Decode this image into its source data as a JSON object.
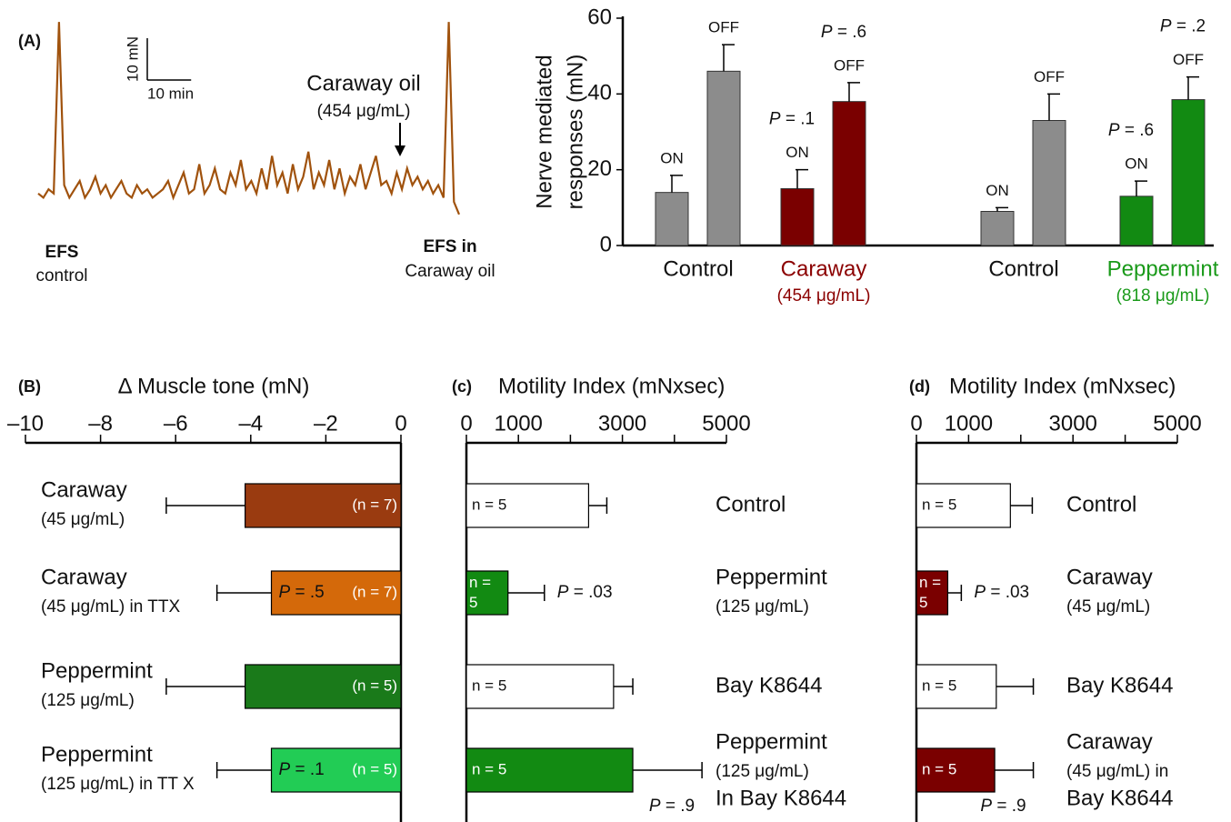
{
  "chart_data": [
    {
      "type": "trace",
      "panel": "(A)",
      "color": "#a0520d",
      "ylim": [
        0,
        50
      ],
      "xlim": [
        0,
        96
      ],
      "scalebar_y": 10,
      "scalebar_y_label": "10 mN",
      "scalebar_x": 10,
      "scalebar_x_label": "10 min",
      "annotations": [
        "Caraway oil",
        "(454 μg/mL)",
        "EFS",
        "control",
        "EFS in",
        "Caraway oil"
      ],
      "values": [
        7,
        6,
        8,
        7,
        48,
        9,
        6,
        8,
        10,
        6,
        8,
        11,
        7,
        9,
        6,
        8,
        10,
        7,
        6,
        9,
        7,
        8,
        6,
        7,
        8,
        10,
        6,
        9,
        12,
        7,
        8,
        14,
        7,
        9,
        13,
        8,
        7,
        12,
        9,
        15,
        8,
        10,
        7,
        13,
        8,
        16,
        9,
        12,
        7,
        14,
        8,
        11,
        17,
        8,
        12,
        9,
        15,
        8,
        13,
        7,
        11,
        9,
        14,
        8,
        12,
        16,
        9,
        10,
        7,
        12,
        8,
        13,
        9,
        11,
        8,
        10,
        7,
        9,
        6,
        48,
        5,
        2
      ]
    },
    {
      "type": "grouped-bar",
      "ylabel": [
        "Nerve mediated",
        "responses (mN)"
      ],
      "ylim": [
        0,
        60
      ],
      "yticks": [
        0,
        20,
        40,
        60
      ],
      "categories": [
        "Control",
        "Caraway",
        "Control",
        "Peppermint"
      ],
      "category_sublabels": [
        null,
        "(454 μg/mL)",
        null,
        "(818 μg/mL)"
      ],
      "colors": [
        "#8c8c8c",
        "#7a0000",
        "#8c8c8c",
        "#128a12"
      ],
      "label_colors": [
        "#111111",
        "#8b0000",
        "#111111",
        "#1a9a1a"
      ],
      "series": [
        {
          "name": "ON",
          "values": [
            14,
            15,
            9,
            13
          ],
          "errors": [
            4.5,
            5,
            1,
            4
          ],
          "p_labels": [
            null,
            "P = .1",
            null,
            "P = .6"
          ]
        },
        {
          "name": "OFF",
          "values": [
            46,
            38,
            33,
            38.5
          ],
          "errors": [
            7,
            5,
            7,
            6
          ],
          "p_labels": [
            null,
            "P = .6",
            null,
            "P = .2"
          ]
        }
      ]
    },
    {
      "type": "hbar",
      "panel": "(B)",
      "title": "Δ Muscle tone (mN)",
      "xlim": [
        -10,
        0
      ],
      "xticks": [
        {
          "value": -10,
          "label": "–10"
        },
        {
          "value": -8,
          "label": "–8"
        },
        {
          "value": -6,
          "label": "–6"
        },
        {
          "value": -4,
          "label": "–4"
        },
        {
          "value": -2,
          "label": "–2"
        },
        0
      ],
      "categories": [
        [
          "Caraway",
          "(45 μg/mL)"
        ],
        [
          "Caraway",
          "(45 μg/mL) in TTX"
        ],
        [
          "Peppermint",
          "(125 μg/mL)"
        ],
        [
          "Peppermint",
          "(125 μg/mL) in TT X"
        ]
      ],
      "values": [
        -4.15,
        -3.45,
        -4.15,
        -3.45
      ],
      "errors": [
        2.1,
        1.45,
        2.1,
        1.45
      ],
      "colors": [
        "#9a3b10",
        "#d4690a",
        "#1a7a1a",
        "#22cc55"
      ],
      "n_labels": [
        "(n = 7)",
        "(n = 7)",
        "(n = 5)",
        "(n = 5)"
      ],
      "p_labels": [
        null,
        "P = .5",
        null,
        "P = .1"
      ]
    },
    {
      "type": "hbar",
      "panel": "(c)",
      "title": "Motility Index (mNxsec)",
      "xlim": [
        0,
        5000
      ],
      "xticks": [
        0,
        1000,
        3000,
        5000
      ],
      "xticks_unlabeled": [
        2000,
        4000
      ],
      "categories": [
        [
          "Control"
        ],
        [
          "Peppermint",
          "(125 μg/mL)"
        ],
        [
          "Bay K8644"
        ],
        [
          "Peppermint",
          "(125 μg/mL)",
          "In Bay K8644"
        ]
      ],
      "values": [
        2350,
        800,
        2830,
        3200
      ],
      "errors": [
        350,
        700,
        370,
        1330
      ],
      "colors": [
        "#ffffff",
        "#128a12",
        "#ffffff",
        "#128a12"
      ],
      "n_labels": [
        "n = 5",
        "n = 5",
        "n = 5",
        "n = 5"
      ],
      "p_labels": [
        null,
        "P = .03",
        null,
        "P = .9"
      ]
    },
    {
      "type": "hbar",
      "panel": "(d)",
      "title": "Motility Index (mNxsec)",
      "xlim": [
        0,
        5000
      ],
      "xticks": [
        0,
        1000,
        3000,
        5000
      ],
      "xticks_unlabeled": [
        2000,
        4000
      ],
      "categories": [
        [
          "Control"
        ],
        [
          "Caraway",
          "(45 μg/mL)"
        ],
        [
          "Bay K8644"
        ],
        [
          "Caraway",
          "(45 μg/mL) in",
          "Bay K8644"
        ]
      ],
      "values": [
        1800,
        600,
        1530,
        1500
      ],
      "errors": [
        420,
        260,
        710,
        740
      ],
      "colors": [
        "#ffffff",
        "#7a0000",
        "#ffffff",
        "#7a0000"
      ],
      "n_labels": [
        "n = 5",
        "n = 5",
        "n = 5",
        "n = 5"
      ],
      "p_labels": [
        null,
        "P = .03",
        null,
        "P = .9"
      ]
    }
  ]
}
